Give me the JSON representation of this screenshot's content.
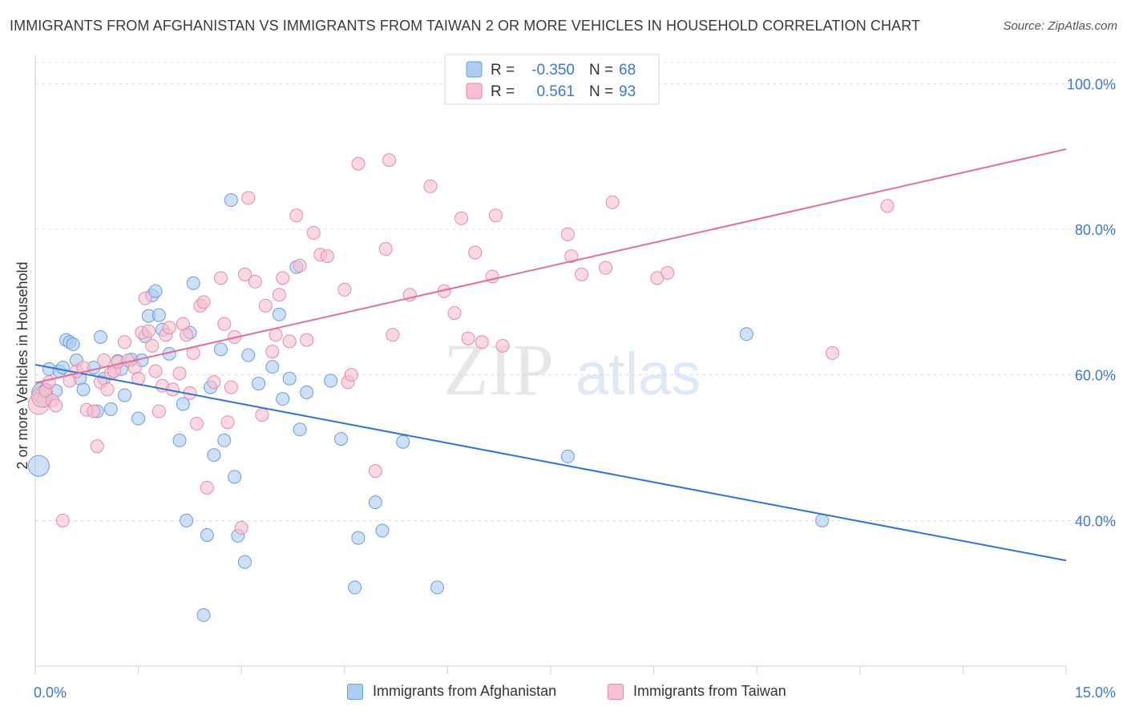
{
  "title": "IMMIGRANTS FROM AFGHANISTAN VS IMMIGRANTS FROM TAIWAN 2 OR MORE VEHICLES IN HOUSEHOLD CORRELATION CHART",
  "source": "Source: ZipAtlas.com",
  "watermark": {
    "zip": "ZIP",
    "atlas": "atlas"
  },
  "colors": {
    "afghanistan_fill": "#aecbf0",
    "afghanistan_stroke": "#6a9de0",
    "afghanistan_line": "#2f74d0",
    "taiwan_fill": "#f7bfd1",
    "taiwan_stroke": "#e88aa8",
    "taiwan_line": "#e0709a",
    "axis_label": "#3b78d8",
    "grid": "#dcdcdc"
  },
  "legend_box": [
    {
      "r_label": "R =",
      "r_value": "-0.350",
      "n_label": "N =",
      "n_value": "68"
    },
    {
      "r_label": "R =",
      "r_value": "0.561",
      "n_label": "N =",
      "n_value": "93"
    }
  ],
  "chart_data": {
    "type": "scatter",
    "title": "IMMIGRANTS FROM AFGHANISTAN VS IMMIGRANTS FROM TAIWAN 2 OR MORE VEHICLES IN HOUSEHOLD CORRELATION CHART",
    "xlabel": "",
    "ylabel": "2 or more Vehicles in Household",
    "xlim": [
      0,
      15
    ],
    "ylim": [
      20,
      104
    ],
    "x_tick_labels": [
      "0.0%",
      "15.0%"
    ],
    "y_ticks": [
      40,
      60,
      80,
      100
    ],
    "y_tick_labels": [
      "40.0%",
      "60.0%",
      "80.0%",
      "100.0%"
    ],
    "grid": true,
    "legend_position": "top-center",
    "series": [
      {
        "name": "Immigrants from Afghanistan",
        "stats": {
          "R": -0.35,
          "N": 68
        },
        "trend": {
          "x": [
            0,
            15
          ],
          "y": [
            61.4,
            34.5
          ]
        },
        "points": [
          [
            0.05,
            47.5
          ],
          [
            0.1,
            57.5
          ],
          [
            0.15,
            58.0
          ],
          [
            0.2,
            60.8
          ],
          [
            0.3,
            57.8
          ],
          [
            0.35,
            60.5
          ],
          [
            0.4,
            61.0
          ],
          [
            0.45,
            64.8
          ],
          [
            0.5,
            64.5
          ],
          [
            0.55,
            64.2
          ],
          [
            0.6,
            62.0
          ],
          [
            0.65,
            59.5
          ],
          [
            0.7,
            58.0
          ],
          [
            0.85,
            61.0
          ],
          [
            0.9,
            55.0
          ],
          [
            0.95,
            65.2
          ],
          [
            1.0,
            59.5
          ],
          [
            1.1,
            55.3
          ],
          [
            1.2,
            61.9
          ],
          [
            1.25,
            60.8
          ],
          [
            1.3,
            57.2
          ],
          [
            1.4,
            62.1
          ],
          [
            1.5,
            54.0
          ],
          [
            1.55,
            62.0
          ],
          [
            1.6,
            65.3
          ],
          [
            1.65,
            68.1
          ],
          [
            1.7,
            70.9
          ],
          [
            1.75,
            71.5
          ],
          [
            1.8,
            68.2
          ],
          [
            1.85,
            66.2
          ],
          [
            1.95,
            62.9
          ],
          [
            2.1,
            51.0
          ],
          [
            2.15,
            56.0
          ],
          [
            2.2,
            40.0
          ],
          [
            2.25,
            65.8
          ],
          [
            2.3,
            72.6
          ],
          [
            2.45,
            27.0
          ],
          [
            2.5,
            38.0
          ],
          [
            2.55,
            58.3
          ],
          [
            2.6,
            49.0
          ],
          [
            2.7,
            63.5
          ],
          [
            2.75,
            51.0
          ],
          [
            2.85,
            84.0
          ],
          [
            2.9,
            46.0
          ],
          [
            2.95,
            37.9
          ],
          [
            3.05,
            34.3
          ],
          [
            3.1,
            62.7
          ],
          [
            3.25,
            58.8
          ],
          [
            3.45,
            61.1
          ],
          [
            3.55,
            68.3
          ],
          [
            3.6,
            56.7
          ],
          [
            3.7,
            59.5
          ],
          [
            3.8,
            74.8
          ],
          [
            3.85,
            52.5
          ],
          [
            3.95,
            57.6
          ],
          [
            4.3,
            59.2
          ],
          [
            4.45,
            51.2
          ],
          [
            4.65,
            30.8
          ],
          [
            4.7,
            37.6
          ],
          [
            4.95,
            42.5
          ],
          [
            5.05,
            38.6
          ],
          [
            5.35,
            50.8
          ],
          [
            5.85,
            30.8
          ],
          [
            7.75,
            48.8
          ],
          [
            10.35,
            65.6
          ],
          [
            11.45,
            40.0
          ],
          [
            0.08,
            57.2
          ],
          [
            0.12,
            56.4
          ]
        ]
      },
      {
        "name": "Immigrants from Taiwan",
        "stats": {
          "R": 0.561,
          "N": 93
        },
        "trend": {
          "x": [
            0,
            15
          ],
          "y": [
            58.9,
            91.0
          ]
        },
        "points": [
          [
            0.05,
            56.0
          ],
          [
            0.1,
            57.0
          ],
          [
            0.15,
            57.8
          ],
          [
            0.2,
            59.0
          ],
          [
            0.25,
            56.5
          ],
          [
            0.3,
            55.8
          ],
          [
            0.4,
            40.0
          ],
          [
            0.5,
            59.2
          ],
          [
            0.6,
            60.5
          ],
          [
            0.7,
            61.0
          ],
          [
            0.75,
            55.2
          ],
          [
            0.85,
            55.0
          ],
          [
            0.9,
            50.2
          ],
          [
            0.95,
            59.0
          ],
          [
            1.0,
            62.0
          ],
          [
            1.05,
            58.0
          ],
          [
            1.1,
            60.2
          ],
          [
            1.15,
            60.5
          ],
          [
            1.2,
            61.8
          ],
          [
            1.3,
            64.5
          ],
          [
            1.35,
            62.0
          ],
          [
            1.45,
            61.0
          ],
          [
            1.5,
            59.5
          ],
          [
            1.55,
            65.8
          ],
          [
            1.6,
            70.5
          ],
          [
            1.65,
            66.0
          ],
          [
            1.7,
            64.0
          ],
          [
            1.75,
            60.5
          ],
          [
            1.8,
            55.0
          ],
          [
            1.85,
            58.5
          ],
          [
            1.9,
            65.5
          ],
          [
            1.95,
            66.5
          ],
          [
            2.0,
            58.0
          ],
          [
            2.1,
            60.2
          ],
          [
            2.15,
            67.0
          ],
          [
            2.2,
            65.5
          ],
          [
            2.25,
            57.5
          ],
          [
            2.3,
            63.0
          ],
          [
            2.35,
            53.3
          ],
          [
            2.4,
            69.5
          ],
          [
            2.45,
            70.0
          ],
          [
            2.5,
            44.5
          ],
          [
            2.6,
            59.0
          ],
          [
            2.7,
            73.3
          ],
          [
            2.75,
            67.0
          ],
          [
            2.8,
            53.5
          ],
          [
            2.85,
            58.3
          ],
          [
            2.9,
            65.2
          ],
          [
            3.0,
            39.0
          ],
          [
            3.05,
            73.8
          ],
          [
            3.1,
            84.3
          ],
          [
            3.2,
            72.8
          ],
          [
            3.3,
            54.5
          ],
          [
            3.35,
            69.5
          ],
          [
            3.45,
            63.2
          ],
          [
            3.5,
            65.5
          ],
          [
            3.55,
            71.0
          ],
          [
            3.6,
            73.3
          ],
          [
            3.7,
            64.6
          ],
          [
            3.8,
            81.9
          ],
          [
            3.85,
            75.0
          ],
          [
            3.95,
            64.8
          ],
          [
            4.05,
            79.5
          ],
          [
            4.15,
            76.5
          ],
          [
            4.25,
            76.3
          ],
          [
            4.5,
            71.7
          ],
          [
            4.55,
            59.0
          ],
          [
            4.6,
            60.0
          ],
          [
            4.7,
            89.0
          ],
          [
            4.95,
            46.8
          ],
          [
            5.1,
            77.3
          ],
          [
            5.15,
            89.5
          ],
          [
            5.2,
            65.5
          ],
          [
            5.45,
            71.0
          ],
          [
            5.75,
            85.9
          ],
          [
            5.95,
            71.5
          ],
          [
            6.1,
            68.5
          ],
          [
            6.2,
            81.5
          ],
          [
            6.3,
            65.0
          ],
          [
            6.4,
            76.8
          ],
          [
            6.5,
            64.5
          ],
          [
            6.65,
            73.5
          ],
          [
            6.7,
            81.9
          ],
          [
            6.8,
            64.0
          ],
          [
            7.75,
            79.3
          ],
          [
            7.8,
            76.3
          ],
          [
            7.95,
            73.8
          ],
          [
            8.3,
            74.7
          ],
          [
            8.4,
            83.7
          ],
          [
            9.05,
            73.3
          ],
          [
            9.2,
            74.0
          ],
          [
            11.6,
            63.0
          ],
          [
            12.4,
            83.2
          ]
        ]
      }
    ]
  },
  "legend_bottom": [
    {
      "label": "Immigrants from Afghanistan"
    },
    {
      "label": "Immigrants from Taiwan"
    }
  ]
}
